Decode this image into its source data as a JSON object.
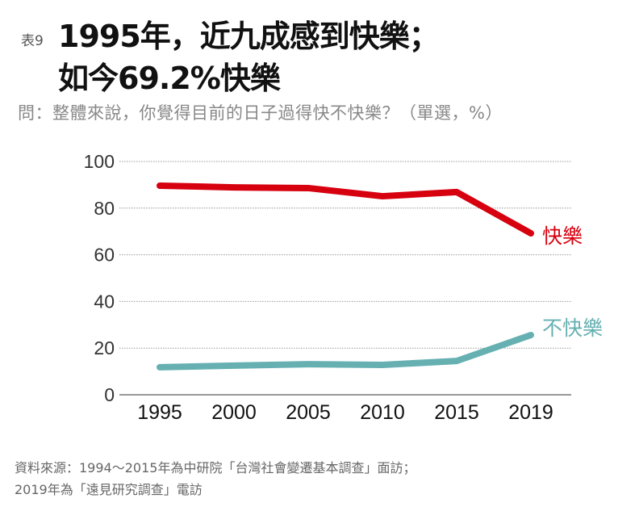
{
  "header": {
    "tag": "表9",
    "title_line1": "1995年，近九成感到快樂；",
    "title_line2": "如今69.2%快樂",
    "question": "問：整體來說，你覺得目前的日子過得快不快樂？（單選，%）"
  },
  "chart_data": {
    "type": "line",
    "categories": [
      "1995",
      "2000",
      "2005",
      "2010",
      "2015",
      "2019"
    ],
    "series": [
      {
        "name": "快樂",
        "color": "#d7000f",
        "values": [
          89.6,
          88.9,
          88.6,
          85.1,
          86.9,
          69.2
        ]
      },
      {
        "name": "不快樂",
        "color": "#66b0b2",
        "values": [
          11.8,
          12.5,
          13.1,
          12.8,
          14.5,
          25.6
        ]
      }
    ],
    "ylim": [
      0,
      100
    ],
    "yticks": [
      "0",
      "20",
      "40",
      "60",
      "80",
      "100"
    ],
    "grid": true,
    "xlabel": "",
    "ylabel": ""
  },
  "footer": {
    "source_line1": "資料來源：1994～2015年為中研院「台灣社會變遷基本調查」面訪；",
    "source_line2": "2019年為「遠見研究調查」電訪"
  }
}
